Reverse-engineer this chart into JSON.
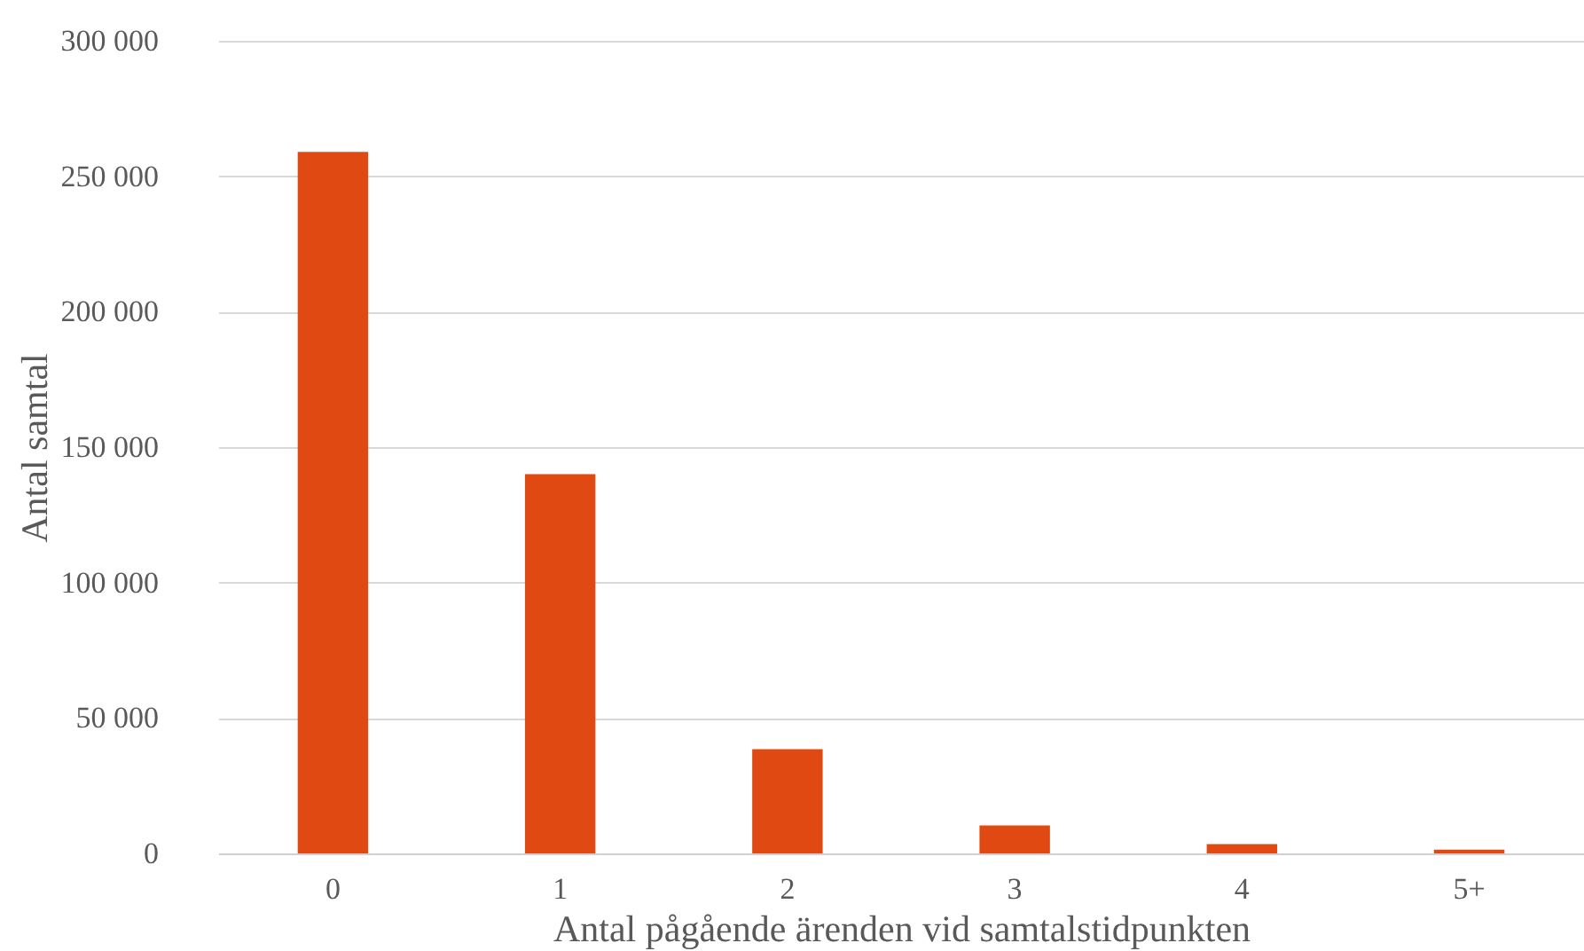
{
  "chart_data": {
    "type": "bar",
    "xlabel": "Antal pågående ärenden vid samtalstidpunkten",
    "ylabel": "Antal samtal",
    "categories": [
      "0",
      "1",
      "2",
      "3",
      "4",
      "5+"
    ],
    "values": [
      259000,
      140000,
      38500,
      10300,
      3400,
      1400
    ],
    "color": "#e04a12",
    "ylim": [
      0,
      300000
    ],
    "yticks": [
      {
        "value": 0,
        "label": "0"
      },
      {
        "value": 50000,
        "label": "50 000"
      },
      {
        "value": 100000,
        "label": "100 000"
      },
      {
        "value": 150000,
        "label": "150 000"
      },
      {
        "value": 200000,
        "label": "200 000"
      },
      {
        "value": 250000,
        "label": "250 000"
      },
      {
        "value": 300000,
        "label": "300 000"
      }
    ],
    "grid": "y"
  }
}
